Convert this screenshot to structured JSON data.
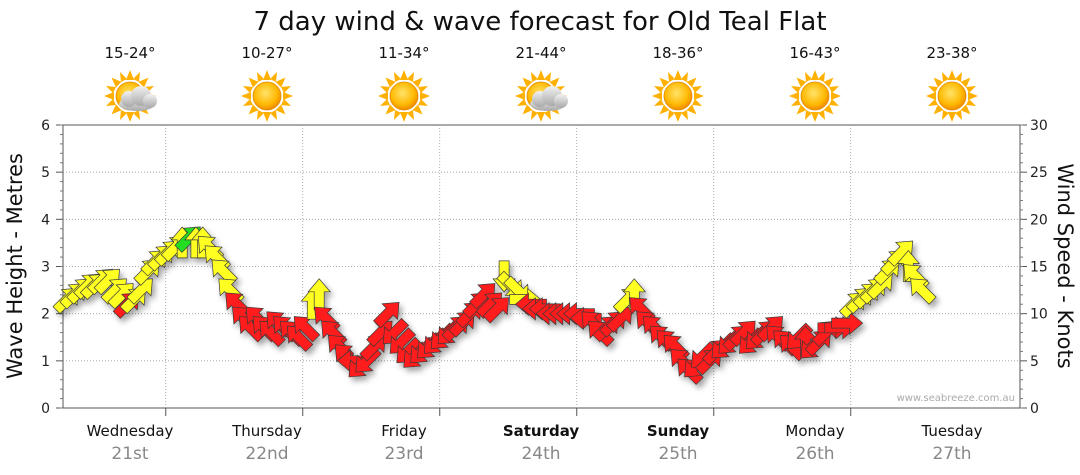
{
  "title": "7 day wind & wave forecast for Old Teal Flat",
  "credit": "www.seabreeze.com.au",
  "colors": {
    "light": "#ffff22",
    "moderate": "#ff1a1a",
    "strong_light": "#22dd22",
    "grid": "#999999"
  },
  "days": [
    {
      "name": "Wednesday",
      "date": "21st",
      "temp": "15-24°",
      "icon": "partly-cloudy-icon",
      "weekend": false
    },
    {
      "name": "Thursday",
      "date": "22nd",
      "temp": "10-27°",
      "icon": "sun-icon",
      "weekend": false
    },
    {
      "name": "Friday",
      "date": "23rd",
      "temp": "11-34°",
      "icon": "sun-icon",
      "weekend": false
    },
    {
      "name": "Saturday",
      "date": "24th",
      "temp": "21-44°",
      "icon": "partly-cloudy-icon",
      "weekend": true
    },
    {
      "name": "Sunday",
      "date": "25th",
      "temp": "18-36°",
      "icon": "sun-icon",
      "weekend": true
    },
    {
      "name": "Monday",
      "date": "26th",
      "temp": "16-43°",
      "icon": "sun-icon",
      "weekend": false
    },
    {
      "name": "Tuesday",
      "date": "27th",
      "temp": "23-38°",
      "icon": "sun-icon",
      "weekend": false
    }
  ],
  "chart_data": {
    "type": "scatter",
    "title": "7 day wind & wave forecast for Old Teal Flat",
    "ylabel_left": "Wave Height - Metres",
    "ylabel_right": "Wind Speed - Knots",
    "ylim_left": [
      0,
      6
    ],
    "ylim_right": [
      0,
      30
    ],
    "yticks_left": [
      "0",
      "1",
      "2",
      "3",
      "4",
      "5",
      "6"
    ],
    "yticks_right": [
      "0",
      "5",
      "10",
      "15",
      "20",
      "25",
      "30"
    ],
    "x_unit": "days from start of Wednesday 21st",
    "xlim": [
      0.25,
      7
    ],
    "grid": true,
    "series": [
      {
        "name": "Wind Speed - Knots",
        "note": "arrow marks; colour = strength, direction = wind direction",
        "points": [
          {
            "x": 0.28,
            "y": 11.5,
            "dir": "NE",
            "c": "light"
          },
          {
            "x": 0.33,
            "y": 12.0,
            "dir": "NE",
            "c": "light"
          },
          {
            "x": 0.38,
            "y": 12.5,
            "dir": "NE",
            "c": "light"
          },
          {
            "x": 0.43,
            "y": 13.0,
            "dir": "NE",
            "c": "light"
          },
          {
            "x": 0.48,
            "y": 13.0,
            "dir": "NE",
            "c": "light"
          },
          {
            "x": 0.53,
            "y": 13.5,
            "dir": "NE",
            "c": "light"
          },
          {
            "x": 0.58,
            "y": 13.5,
            "dir": "NE",
            "c": "light"
          },
          {
            "x": 0.63,
            "y": 12.5,
            "dir": "NE",
            "c": "light"
          },
          {
            "x": 0.68,
            "y": 12.0,
            "dir": "NE",
            "c": "light"
          },
          {
            "x": 0.72,
            "y": 11.0,
            "dir": "NE",
            "c": "moderate"
          },
          {
            "x": 0.77,
            "y": 11.5,
            "dir": "NE",
            "c": "light"
          },
          {
            "x": 0.82,
            "y": 12.5,
            "dir": "NE",
            "c": "light"
          },
          {
            "x": 0.87,
            "y": 14.5,
            "dir": "NE",
            "c": "light"
          },
          {
            "x": 0.92,
            "y": 15.5,
            "dir": "NE",
            "c": "light"
          },
          {
            "x": 0.97,
            "y": 16.0,
            "dir": "NE",
            "c": "light"
          },
          {
            "x": 1.02,
            "y": 16.5,
            "dir": "NE",
            "c": "light"
          },
          {
            "x": 1.07,
            "y": 17.0,
            "dir": "NE",
            "c": "light"
          },
          {
            "x": 1.12,
            "y": 17.5,
            "dir": "N",
            "c": "light"
          },
          {
            "x": 1.17,
            "y": 18.0,
            "dir": "NE",
            "c": "strong_light"
          },
          {
            "x": 1.22,
            "y": 17.5,
            "dir": "N",
            "c": "light"
          },
          {
            "x": 1.27,
            "y": 17.5,
            "dir": "N",
            "c": "light"
          },
          {
            "x": 1.32,
            "y": 17.0,
            "dir": "NW",
            "c": "light"
          },
          {
            "x": 1.37,
            "y": 16.0,
            "dir": "NW",
            "c": "light"
          },
          {
            "x": 1.42,
            "y": 14.5,
            "dir": "NW",
            "c": "light"
          },
          {
            "x": 1.47,
            "y": 12.5,
            "dir": "NW",
            "c": "light"
          },
          {
            "x": 1.52,
            "y": 11.0,
            "dir": "NW",
            "c": "moderate"
          },
          {
            "x": 1.57,
            "y": 9.5,
            "dir": "NW",
            "c": "moderate"
          },
          {
            "x": 1.62,
            "y": 8.5,
            "dir": "NW",
            "c": "moderate"
          },
          {
            "x": 1.67,
            "y": 9.5,
            "dir": "NW",
            "c": "moderate"
          },
          {
            "x": 1.72,
            "y": 8.5,
            "dir": "NW",
            "c": "moderate"
          },
          {
            "x": 1.77,
            "y": 8.0,
            "dir": "NW",
            "c": "moderate"
          },
          {
            "x": 1.82,
            "y": 9.0,
            "dir": "NW",
            "c": "moderate"
          },
          {
            "x": 1.87,
            "y": 8.5,
            "dir": "NW",
            "c": "moderate"
          },
          {
            "x": 1.92,
            "y": 8.0,
            "dir": "NW",
            "c": "moderate"
          },
          {
            "x": 1.97,
            "y": 7.5,
            "dir": "NW",
            "c": "moderate"
          },
          {
            "x": 2.02,
            "y": 8.5,
            "dir": "NW",
            "c": "moderate"
          },
          {
            "x": 2.07,
            "y": 11.0,
            "dir": "N",
            "c": "light"
          },
          {
            "x": 2.12,
            "y": 12.0,
            "dir": "N",
            "c": "light"
          },
          {
            "x": 2.17,
            "y": 9.5,
            "dir": "NW",
            "c": "moderate"
          },
          {
            "x": 2.22,
            "y": 8.0,
            "dir": "NW",
            "c": "moderate"
          },
          {
            "x": 2.27,
            "y": 6.5,
            "dir": "NW",
            "c": "moderate"
          },
          {
            "x": 2.32,
            "y": 5.5,
            "dir": "NW",
            "c": "moderate"
          },
          {
            "x": 2.37,
            "y": 5.0,
            "dir": "W",
            "c": "moderate"
          },
          {
            "x": 2.42,
            "y": 4.5,
            "dir": "SW",
            "c": "moderate"
          },
          {
            "x": 2.47,
            "y": 5.0,
            "dir": "SW",
            "c": "moderate"
          },
          {
            "x": 2.52,
            "y": 6.5,
            "dir": "NE",
            "c": "moderate"
          },
          {
            "x": 2.57,
            "y": 8.0,
            "dir": "NE",
            "c": "moderate"
          },
          {
            "x": 2.62,
            "y": 10.0,
            "dir": "NE",
            "c": "moderate"
          },
          {
            "x": 2.67,
            "y": 8.0,
            "dir": "SW",
            "c": "moderate"
          },
          {
            "x": 2.72,
            "y": 7.0,
            "dir": "SW",
            "c": "moderate"
          },
          {
            "x": 2.77,
            "y": 6.0,
            "dir": "SW",
            "c": "moderate"
          },
          {
            "x": 2.82,
            "y": 5.5,
            "dir": "SW",
            "c": "moderate"
          },
          {
            "x": 2.87,
            "y": 6.0,
            "dir": "SW",
            "c": "moderate"
          },
          {
            "x": 2.92,
            "y": 6.5,
            "dir": "SW",
            "c": "moderate"
          },
          {
            "x": 2.97,
            "y": 7.0,
            "dir": "SW",
            "c": "moderate"
          },
          {
            "x": 3.02,
            "y": 7.5,
            "dir": "SW",
            "c": "moderate"
          },
          {
            "x": 3.07,
            "y": 8.0,
            "dir": "SW",
            "c": "moderate"
          },
          {
            "x": 3.12,
            "y": 8.5,
            "dir": "NE",
            "c": "moderate"
          },
          {
            "x": 3.17,
            "y": 9.0,
            "dir": "NE",
            "c": "moderate"
          },
          {
            "x": 3.22,
            "y": 10.0,
            "dir": "NE",
            "c": "moderate"
          },
          {
            "x": 3.27,
            "y": 11.0,
            "dir": "NE",
            "c": "moderate"
          },
          {
            "x": 3.32,
            "y": 12.0,
            "dir": "NE",
            "c": "moderate"
          },
          {
            "x": 3.37,
            "y": 11.0,
            "dir": "NE",
            "c": "moderate"
          },
          {
            "x": 3.42,
            "y": 10.5,
            "dir": "NE",
            "c": "moderate"
          },
          {
            "x": 3.47,
            "y": 14.0,
            "dir": "S",
            "c": "light"
          },
          {
            "x": 3.52,
            "y": 13.0,
            "dir": "SE",
            "c": "light"
          },
          {
            "x": 3.57,
            "y": 12.5,
            "dir": "SE",
            "c": "light"
          },
          {
            "x": 3.62,
            "y": 11.5,
            "dir": "E",
            "c": "light"
          },
          {
            "x": 3.67,
            "y": 11.0,
            "dir": "W",
            "c": "moderate"
          },
          {
            "x": 3.72,
            "y": 10.5,
            "dir": "W",
            "c": "moderate"
          },
          {
            "x": 3.77,
            "y": 10.5,
            "dir": "W",
            "c": "moderate"
          },
          {
            "x": 3.82,
            "y": 10.0,
            "dir": "W",
            "c": "moderate"
          },
          {
            "x": 3.87,
            "y": 10.0,
            "dir": "W",
            "c": "moderate"
          },
          {
            "x": 3.92,
            "y": 10.0,
            "dir": "W",
            "c": "moderate"
          },
          {
            "x": 3.97,
            "y": 10.0,
            "dir": "W",
            "c": "moderate"
          },
          {
            "x": 4.02,
            "y": 10.0,
            "dir": "W",
            "c": "moderate"
          },
          {
            "x": 4.07,
            "y": 9.5,
            "dir": "W",
            "c": "moderate"
          },
          {
            "x": 4.12,
            "y": 9.0,
            "dir": "NW",
            "c": "moderate"
          },
          {
            "x": 4.17,
            "y": 8.0,
            "dir": "NW",
            "c": "moderate"
          },
          {
            "x": 4.22,
            "y": 8.5,
            "dir": "NE",
            "c": "moderate"
          },
          {
            "x": 4.27,
            "y": 9.0,
            "dir": "NE",
            "c": "moderate"
          },
          {
            "x": 4.32,
            "y": 9.5,
            "dir": "NE",
            "c": "moderate"
          },
          {
            "x": 4.37,
            "y": 11.5,
            "dir": "NE",
            "c": "light"
          },
          {
            "x": 4.42,
            "y": 12.0,
            "dir": "N",
            "c": "light"
          },
          {
            "x": 4.47,
            "y": 10.5,
            "dir": "NW",
            "c": "moderate"
          },
          {
            "x": 4.52,
            "y": 9.0,
            "dir": "NW",
            "c": "moderate"
          },
          {
            "x": 4.57,
            "y": 8.5,
            "dir": "NW",
            "c": "moderate"
          },
          {
            "x": 4.62,
            "y": 7.5,
            "dir": "NW",
            "c": "moderate"
          },
          {
            "x": 4.67,
            "y": 7.0,
            "dir": "NW",
            "c": "moderate"
          },
          {
            "x": 4.72,
            "y": 6.5,
            "dir": "NW",
            "c": "moderate"
          },
          {
            "x": 4.77,
            "y": 5.0,
            "dir": "NW",
            "c": "moderate"
          },
          {
            "x": 4.82,
            "y": 4.0,
            "dir": "NW",
            "c": "moderate"
          },
          {
            "x": 4.87,
            "y": 4.5,
            "dir": "SW",
            "c": "moderate"
          },
          {
            "x": 4.92,
            "y": 5.5,
            "dir": "SW",
            "c": "moderate"
          },
          {
            "x": 4.97,
            "y": 5.0,
            "dir": "NE",
            "c": "moderate"
          },
          {
            "x": 5.02,
            "y": 6.0,
            "dir": "NE",
            "c": "moderate"
          },
          {
            "x": 5.07,
            "y": 6.5,
            "dir": "SW",
            "c": "moderate"
          },
          {
            "x": 5.12,
            "y": 7.0,
            "dir": "SW",
            "c": "moderate"
          },
          {
            "x": 5.17,
            "y": 7.5,
            "dir": "NE",
            "c": "moderate"
          },
          {
            "x": 5.22,
            "y": 8.0,
            "dir": "NE",
            "c": "moderate"
          },
          {
            "x": 5.27,
            "y": 7.0,
            "dir": "SW",
            "c": "moderate"
          },
          {
            "x": 5.32,
            "y": 7.5,
            "dir": "SW",
            "c": "moderate"
          },
          {
            "x": 5.37,
            "y": 8.0,
            "dir": "NE",
            "c": "moderate"
          },
          {
            "x": 5.42,
            "y": 8.5,
            "dir": "NE",
            "c": "moderate"
          },
          {
            "x": 5.47,
            "y": 7.5,
            "dir": "NW",
            "c": "moderate"
          },
          {
            "x": 5.52,
            "y": 7.0,
            "dir": "NW",
            "c": "moderate"
          },
          {
            "x": 5.57,
            "y": 6.5,
            "dir": "NW",
            "c": "moderate"
          },
          {
            "x": 5.62,
            "y": 7.5,
            "dir": "SW",
            "c": "moderate"
          },
          {
            "x": 5.67,
            "y": 7.0,
            "dir": "N",
            "c": "moderate"
          },
          {
            "x": 5.72,
            "y": 6.5,
            "dir": "SW",
            "c": "moderate"
          },
          {
            "x": 5.77,
            "y": 7.0,
            "dir": "NE",
            "c": "moderate"
          },
          {
            "x": 5.82,
            "y": 8.0,
            "dir": "NE",
            "c": "moderate"
          },
          {
            "x": 5.87,
            "y": 8.5,
            "dir": "E",
            "c": "moderate"
          },
          {
            "x": 5.92,
            "y": 8.5,
            "dir": "E",
            "c": "moderate"
          },
          {
            "x": 5.97,
            "y": 9.0,
            "dir": "E",
            "c": "moderate"
          },
          {
            "x": 6.02,
            "y": 11.0,
            "dir": "NE",
            "c": "light"
          },
          {
            "x": 6.07,
            "y": 11.5,
            "dir": "NE",
            "c": "light"
          },
          {
            "x": 6.12,
            "y": 12.0,
            "dir": "NE",
            "c": "light"
          },
          {
            "x": 6.17,
            "y": 12.5,
            "dir": "NE",
            "c": "light"
          },
          {
            "x": 6.22,
            "y": 13.0,
            "dir": "NE",
            "c": "light"
          },
          {
            "x": 6.27,
            "y": 14.5,
            "dir": "NE",
            "c": "light"
          },
          {
            "x": 6.32,
            "y": 15.5,
            "dir": "NE",
            "c": "light"
          },
          {
            "x": 6.37,
            "y": 16.5,
            "dir": "NE",
            "c": "light"
          },
          {
            "x": 6.42,
            "y": 15.0,
            "dir": "N",
            "c": "light"
          },
          {
            "x": 6.47,
            "y": 14.0,
            "dir": "NW",
            "c": "light"
          },
          {
            "x": 6.52,
            "y": 12.5,
            "dir": "NW",
            "c": "light"
          }
        ]
      },
      {
        "name": "Wave Height - Metres",
        "note": "no wave series rendered on this chart",
        "points": []
      }
    ]
  }
}
